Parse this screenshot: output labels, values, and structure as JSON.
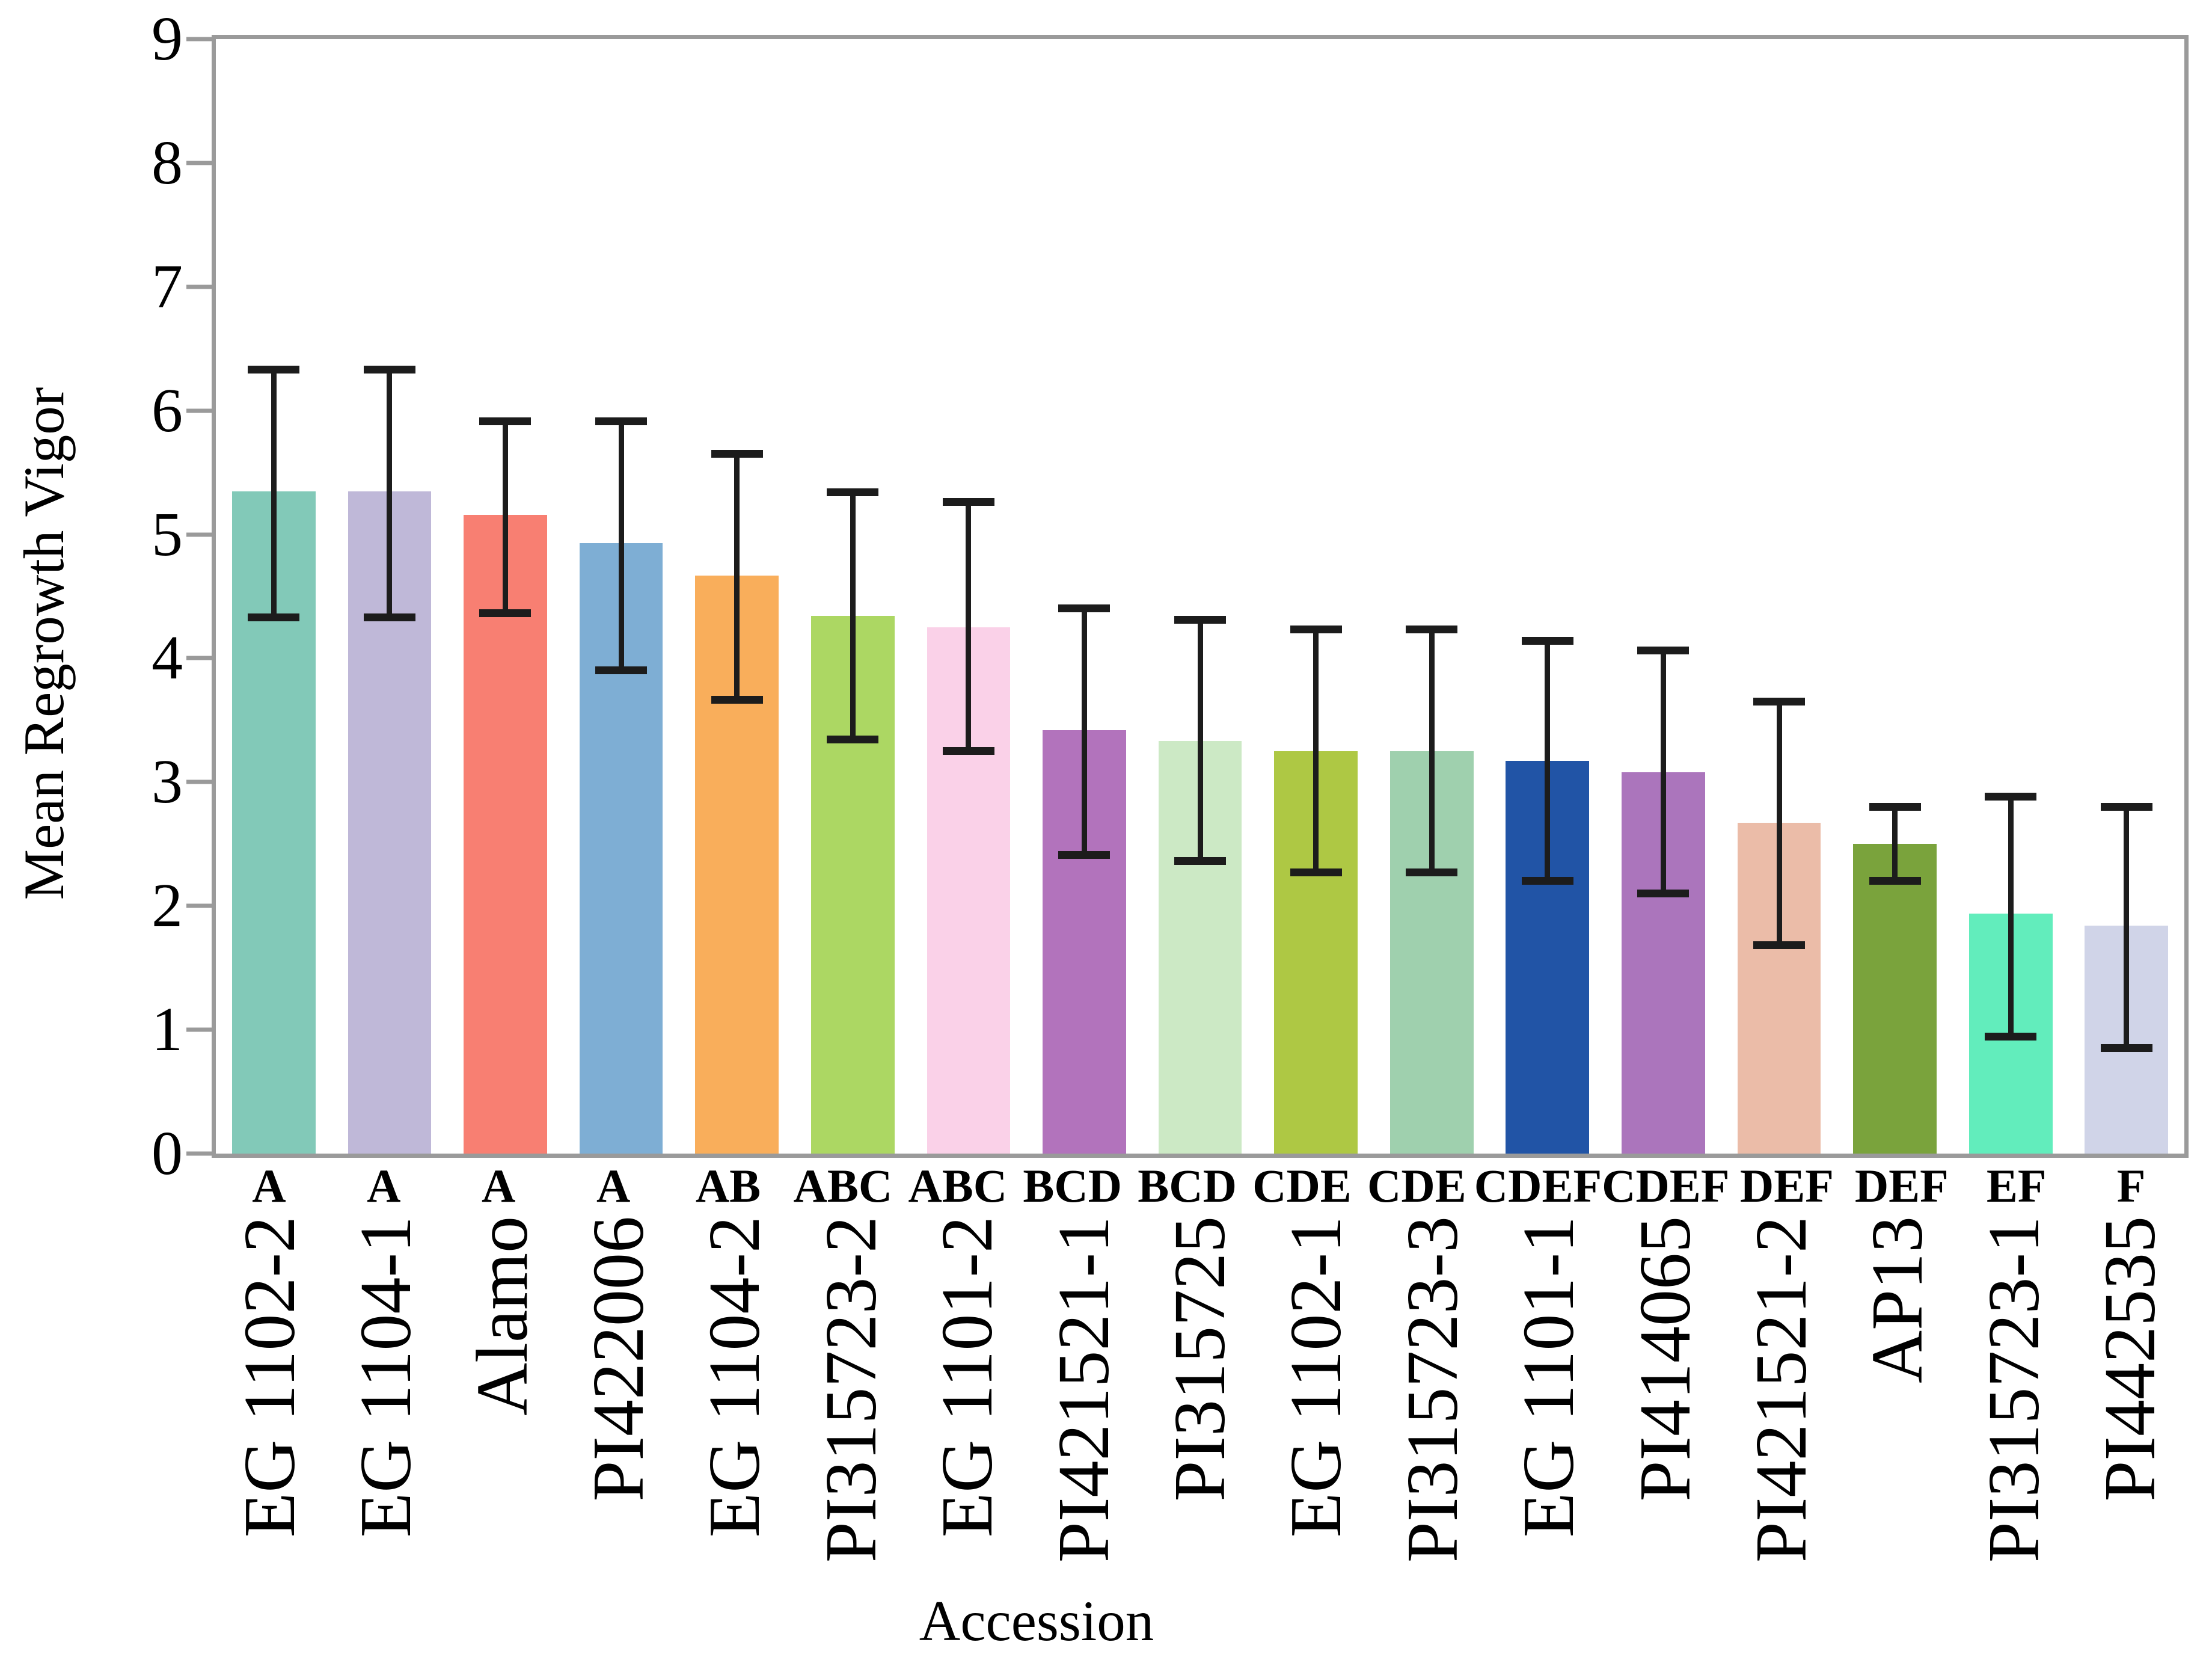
{
  "figure": {
    "y_axis_title": "Mean Regrowth Vigor",
    "x_axis_title": "Accession"
  },
  "chart_data": {
    "type": "bar",
    "title": "",
    "xlabel": "Accession",
    "ylabel": "Mean Regrowth Vigor",
    "ylim": [
      0,
      9
    ],
    "yticks": [
      0,
      1,
      2,
      3,
      4,
      5,
      6,
      7,
      8,
      9
    ],
    "grid": false,
    "legend": "none",
    "error_bars": true,
    "categories": [
      "EG 1102-2",
      "EG 1104-1",
      "Alamo",
      "PI422006",
      "EG 1104-2",
      "PI315723-2",
      "EG 1101-2",
      "PI421521-1",
      "PI315725",
      "EG 1102-1",
      "PI315723-3",
      "EG 1101-1",
      "PI414065",
      "PI421521-2",
      "AP13",
      "PI315723-1",
      "PI442535"
    ],
    "significance_letters": [
      "A",
      "A",
      "A",
      "A",
      "AB",
      "ABC",
      "ABC",
      "BCD",
      "BCD",
      "CDE",
      "CDE",
      "CDEF",
      "CDEF",
      "DEF",
      "DEF",
      "EF",
      "F"
    ],
    "values": [
      5.35,
      5.35,
      5.16,
      4.93,
      4.67,
      4.34,
      4.25,
      3.42,
      3.33,
      3.25,
      3.25,
      3.17,
      3.08,
      2.67,
      2.5,
      1.94,
      1.84
    ],
    "error_low": [
      4.33,
      4.33,
      4.36,
      3.9,
      3.66,
      3.34,
      3.25,
      2.41,
      2.36,
      2.27,
      2.27,
      2.2,
      2.1,
      1.68,
      2.2,
      0.94,
      0.85
    ],
    "error_high": [
      6.33,
      6.33,
      5.91,
      5.91,
      5.65,
      5.34,
      5.26,
      4.4,
      4.31,
      4.23,
      4.23,
      4.14,
      4.06,
      3.65,
      2.8,
      2.88,
      2.8
    ],
    "bar_colors": [
      "#82c9b8",
      "#bfb8d8",
      "#f87f72",
      "#7eaed4",
      "#f9ae5b",
      "#acd763",
      "#fad1e8",
      "#b273bc",
      "#cce9c5",
      "#aec844",
      "#9fd0ae",
      "#2154a6",
      "#ab75bc",
      "#ebbca8",
      "#7aa33c",
      "#62edbc",
      "#d0d4e8"
    ],
    "axis_color": "#9a9a9a",
    "error_bar_color": "#1c1c1c",
    "text_color": "#000000"
  }
}
